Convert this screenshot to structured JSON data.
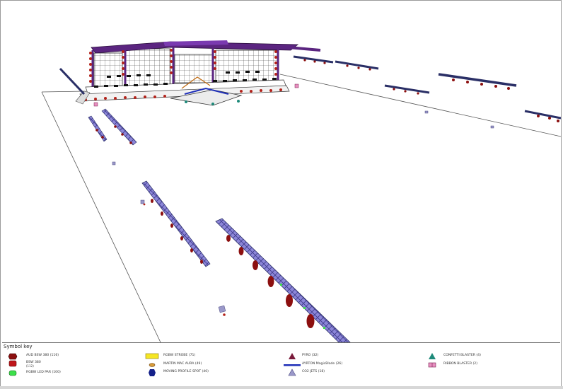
{
  "legend": {
    "title": "Symbol key",
    "items": [
      {
        "label": "AUD BSW 380 (116)",
        "sub": "",
        "icon": "aud-bsw-icon",
        "color": "#8c0f0f"
      },
      {
        "label": "BSW 380",
        "sub": "(112)",
        "icon": "bsw-380-icon",
        "color": "#c0161b"
      },
      {
        "label": "RGBW LED PAR (100)",
        "sub": "",
        "icon": "led-par-icon",
        "color": "#3ce04a"
      },
      {
        "label": "RGBW STROBE (71)",
        "sub": "",
        "icon": "strobe-icon",
        "color": "#f5e624"
      },
      {
        "label": "MARTIN MAC AURA (49)",
        "sub": "",
        "icon": "mac-aura-icon",
        "color": "#d89b3a"
      },
      {
        "label": "MOVING PROFILE SPOT (40)",
        "sub": "",
        "icon": "profile-spot-icon",
        "color": "#14208a"
      },
      {
        "label": "PYRO (32)",
        "sub": "",
        "icon": "pyro-icon",
        "color": "#7a1a3a"
      },
      {
        "label": "AYRTON MagicBlade (26)",
        "sub": "",
        "icon": "magicblade-icon",
        "color": "#1f2fb8"
      },
      {
        "label": "CO2 JETS (18)",
        "sub": "",
        "icon": "co2-jet-icon",
        "color": "#9a98c9"
      },
      {
        "label": "CONFETTI BLASTER (4)",
        "sub": "",
        "icon": "confetti-blaster-icon",
        "color": "#1e8a7a"
      },
      {
        "label": "RIBBON BLASTER (2)",
        "sub": "",
        "icon": "ribbon-blaster-icon",
        "color": "#e790c0"
      }
    ]
  }
}
